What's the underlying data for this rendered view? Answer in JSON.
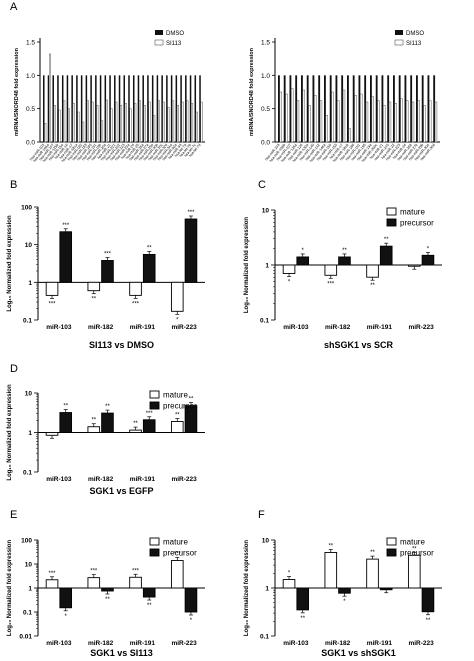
{
  "panel_letters": [
    "A",
    "B",
    "C",
    "D",
    "E",
    "F"
  ],
  "chart_data": [
    {
      "panel": "A",
      "type": "bar",
      "subtype": "fold-expression-screen",
      "ylabel": "miRNA/SNORD48 fold expression",
      "ylim": [
        0.0,
        1.5
      ],
      "yticks": [
        "0.0",
        "0.5",
        "1.0",
        "1.5"
      ],
      "legend": [
        "DMSO",
        "SI113"
      ],
      "legend_position": "top-right",
      "categories": [
        "hsa-miR-103",
        "hsa-miR-106a",
        "hsa-miR-107",
        "hsa-miR-125b",
        "hsa-miR-15a",
        "hsa-miR-16",
        "hsa-miR-17",
        "hsa-miR-181a",
        "hsa-miR-182",
        "hsa-miR-183",
        "hsa-miR-185",
        "hsa-miR-191",
        "hsa-miR-19b",
        "hsa-miR-20a",
        "hsa-miR-21",
        "hsa-miR-221",
        "hsa-miR-222",
        "hsa-miR-223",
        "hsa-miR-23a",
        "hsa-miR-24",
        "hsa-miR-25",
        "hsa-miR-26a",
        "hsa-miR-27a",
        "hsa-miR-29a",
        "hsa-miR-30b",
        "hsa-miR-30c",
        "hsa-miR-320",
        "hsa-miR-34a",
        "hsa-miR-92a",
        "hsa-miR-93",
        "hsa-let-7a",
        "hsa-let-7b",
        "hsa-let-7c",
        "hsa-let-7d"
      ],
      "series": [
        {
          "name": "DMSO",
          "values": [
            1,
            1,
            1,
            1,
            1,
            1,
            1,
            1,
            1,
            1,
            1,
            1,
            1,
            1,
            1,
            1,
            1,
            1,
            1,
            1,
            1,
            1,
            1,
            1,
            1,
            1,
            1,
            1,
            1,
            1,
            1,
            1,
            1,
            1
          ]
        },
        {
          "name": "SI113",
          "values": [
            0.28,
            1.32,
            0.55,
            0.48,
            0.62,
            0.5,
            0.58,
            0.45,
            0.3,
            0.62,
            0.6,
            0.55,
            0.32,
            0.63,
            0.5,
            0.6,
            0.55,
            0.58,
            0.5,
            0.58,
            0.62,
            0.55,
            0.6,
            0.4,
            0.62,
            0.6,
            0.52,
            0.62,
            0.55,
            0.6,
            0.62,
            0.58,
            0.45,
            0.6
          ]
        }
      ]
    },
    {
      "panel": "A2",
      "type": "bar",
      "subtype": "fold-expression-screen",
      "ylabel": "miRNA/SNORD48 fold expression",
      "ylim": [
        0.0,
        1.5
      ],
      "yticks": [
        "0.0",
        "0.5",
        "1.0",
        "1.5"
      ],
      "legend": [
        "DMSO",
        "SI113"
      ],
      "legend_position": "top-right",
      "categories": [
        "hsa-miR-103",
        "hsa-miR-106b",
        "hsa-miR-107",
        "hsa-miR-125a",
        "hsa-miR-126",
        "hsa-miR-130a",
        "hsa-miR-140",
        "hsa-miR-142",
        "hsa-miR-146a",
        "hsa-miR-150",
        "hsa-miR-155",
        "hsa-miR-17",
        "hsa-miR-181b",
        "hsa-miR-186",
        "hsa-miR-191",
        "hsa-miR-195",
        "hsa-miR-19a",
        "hsa-miR-200c",
        "hsa-miR-21",
        "hsa-miR-210",
        "hsa-miR-22",
        "hsa-miR-223",
        "hsa-miR-24",
        "hsa-miR-26b",
        "hsa-miR-27b",
        "hsa-miR-29b",
        "hsa-miR-30a",
        "hsa-miR-30d"
      ],
      "series": [
        {
          "name": "DMSO",
          "values": [
            1,
            1,
            1,
            1,
            1,
            1,
            1,
            1,
            1,
            1,
            1,
            1,
            1,
            1,
            1,
            1,
            1,
            1,
            1,
            1,
            1,
            1,
            1,
            1,
            1,
            1,
            1,
            1
          ]
        },
        {
          "name": "SI113",
          "values": [
            0.75,
            0.72,
            0.8,
            0.62,
            0.78,
            0.55,
            0.7,
            0.62,
            0.4,
            0.75,
            0.62,
            0.78,
            0.2,
            0.7,
            0.72,
            0.6,
            0.68,
            0.62,
            0.55,
            0.6,
            0.58,
            0.65,
            0.62,
            0.6,
            0.62,
            0.55,
            0.62,
            0.6
          ]
        }
      ]
    },
    {
      "panel": "B",
      "type": "bar",
      "yscale": "log",
      "ylim": [
        0.1,
        100
      ],
      "yticks": [
        "0.1",
        "1",
        "10",
        "100"
      ],
      "ylabel": "Log₁₀ Normalized fold expression",
      "xlabel": "SI113 vs DMSO",
      "categories": [
        "miR-103",
        "miR-182",
        "miR-191",
        "miR-223"
      ],
      "legend": [],
      "series": [
        {
          "name": "mature",
          "values": [
            0.45,
            0.6,
            0.45,
            0.17
          ],
          "sig": [
            "***",
            "**",
            "***",
            "*"
          ]
        },
        {
          "name": "precursor",
          "values": [
            22,
            3.8,
            5.5,
            48
          ],
          "sig": [
            "***",
            "***",
            "**",
            "***"
          ]
        }
      ]
    },
    {
      "panel": "C",
      "type": "bar",
      "yscale": "log",
      "ylim": [
        0.1,
        10
      ],
      "yticks": [
        "0.1",
        "1",
        "10"
      ],
      "ylabel": "Log₁₀ Normalized fold expression",
      "xlabel": "shSGK1 vs SCR",
      "categories": [
        "miR-103",
        "miR-182",
        "miR-191",
        "miR-223"
      ],
      "legend": [
        "mature",
        "precursor"
      ],
      "legend_position": "top-right",
      "series": [
        {
          "name": "mature",
          "values": [
            0.7,
            0.65,
            0.6,
            0.95
          ],
          "sig": [
            "*",
            "***",
            "**",
            ""
          ]
        },
        {
          "name": "precursor",
          "values": [
            1.4,
            1.4,
            2.2,
            1.5
          ],
          "sig": [
            "*",
            "**",
            "**",
            "*"
          ]
        }
      ]
    },
    {
      "panel": "D",
      "type": "bar",
      "yscale": "log",
      "ylim": [
        0.1,
        10
      ],
      "yticks": [
        "0.1",
        "1",
        "10"
      ],
      "ylabel": "Log₁₀ Normalized fold expression",
      "xlabel": "SGK1 vs EGFP",
      "categories": [
        "miR-103",
        "miR-182",
        "miR-191",
        "miR-223"
      ],
      "legend": [
        "mature",
        "precursor"
      ],
      "legend_position": "top-right",
      "series": [
        {
          "name": "mature",
          "values": [
            0.85,
            1.4,
            1.15,
            1.9
          ],
          "sig": [
            "",
            "**",
            "**",
            "**"
          ]
        },
        {
          "name": "precursor",
          "values": [
            3.2,
            3.1,
            2.1,
            4.8
          ],
          "sig": [
            "**",
            "**",
            "***",
            "**"
          ]
        }
      ]
    },
    {
      "panel": "E",
      "type": "bar",
      "yscale": "log",
      "ylim": [
        0.01,
        100
      ],
      "yticks": [
        "0.01",
        "0.1",
        "1",
        "10",
        "100"
      ],
      "ylabel": "Log₁₀ Normalized fold expression",
      "xlabel": "SGK1 vs SI113",
      "categories": [
        "miR-103",
        "miR-182",
        "miR-191",
        "miR-223"
      ],
      "legend": [
        "mature",
        "precursor"
      ],
      "legend_position": "top-right",
      "series": [
        {
          "name": "mature",
          "values": [
            2.2,
            2.7,
            2.8,
            14
          ],
          "sig": [
            "***",
            "***",
            "***",
            "***"
          ]
        },
        {
          "name": "precursor",
          "values": [
            0.15,
            0.75,
            0.42,
            0.1
          ],
          "sig": [
            "*",
            "**",
            "**",
            "*"
          ]
        }
      ]
    },
    {
      "panel": "F",
      "type": "bar",
      "yscale": "log",
      "ylim": [
        0.1,
        10
      ],
      "yticks": [
        "0.1",
        "1",
        "10"
      ],
      "ylabel": "Log₁₀ Normalized fold expression",
      "xlabel": "SGK1 vs shSGK1",
      "categories": [
        "miR-103",
        "miR-182",
        "miR-191",
        "miR-223"
      ],
      "legend": [
        "mature",
        "precursor"
      ],
      "legend_position": "top-right",
      "series": [
        {
          "name": "mature",
          "values": [
            1.5,
            5.5,
            4.0,
            4.8
          ],
          "sig": [
            "*",
            "**",
            "**",
            "**"
          ]
        },
        {
          "name": "precursor",
          "values": [
            0.35,
            0.78,
            0.92,
            0.32
          ],
          "sig": [
            "**",
            "*",
            "",
            "**"
          ]
        }
      ]
    }
  ]
}
